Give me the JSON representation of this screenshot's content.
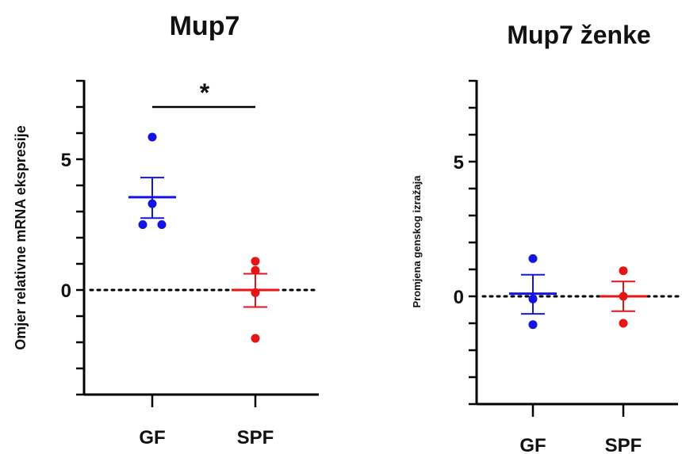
{
  "chart_data": [
    {
      "type": "scatter",
      "title": "Mup7",
      "ylabel": "Omjer relativne mRNA ekspresije",
      "xlabel": "",
      "categories": [
        "GF",
        "SPF"
      ],
      "ylim": [
        -4,
        8
      ],
      "yticks": [
        -4,
        -3,
        -2,
        -1,
        0,
        1,
        2,
        3,
        4,
        5,
        6,
        7,
        8
      ],
      "ytick_labels": [
        {
          "value": 0,
          "label": "0"
        },
        {
          "value": 5,
          "label": "5"
        }
      ],
      "reference_line": 0,
      "series": [
        {
          "category": "GF",
          "color": "#1414e6",
          "points": [
            5.85,
            3.3,
            2.5,
            2.5
          ],
          "mean": 3.55,
          "sem_upper": 4.3,
          "sem_lower": 2.75
        },
        {
          "category": "SPF",
          "color": "#e61414",
          "points": [
            1.1,
            0.75,
            -0.1,
            -1.85
          ],
          "mean": 0.0,
          "sem_upper": 0.62,
          "sem_lower": -0.65
        }
      ],
      "significance": {
        "label": "*",
        "between": [
          "GF",
          "SPF"
        ],
        "y": 7.0
      }
    },
    {
      "type": "scatter",
      "title": "Mup7 ženke",
      "ylabel": "Promjena genskog izražaja",
      "xlabel": "",
      "categories": [
        "GF",
        "SPF"
      ],
      "ylim": [
        -4,
        8
      ],
      "yticks": [
        -4,
        -3,
        -2,
        -1,
        0,
        1,
        2,
        3,
        4,
        5,
        6,
        7,
        8
      ],
      "ytick_labels": [
        {
          "value": 0,
          "label": "0"
        },
        {
          "value": 5,
          "label": "5"
        }
      ],
      "reference_line": 0,
      "series": [
        {
          "category": "GF",
          "color": "#1414e6",
          "points": [
            1.4,
            -0.1,
            -1.05
          ],
          "mean": 0.1,
          "sem_upper": 0.8,
          "sem_lower": -0.65
        },
        {
          "category": "SPF",
          "color": "#e61414",
          "points": [
            0.95,
            0.0,
            -1.0
          ],
          "mean": 0.0,
          "sem_upper": 0.55,
          "sem_lower": -0.55
        }
      ]
    }
  ]
}
